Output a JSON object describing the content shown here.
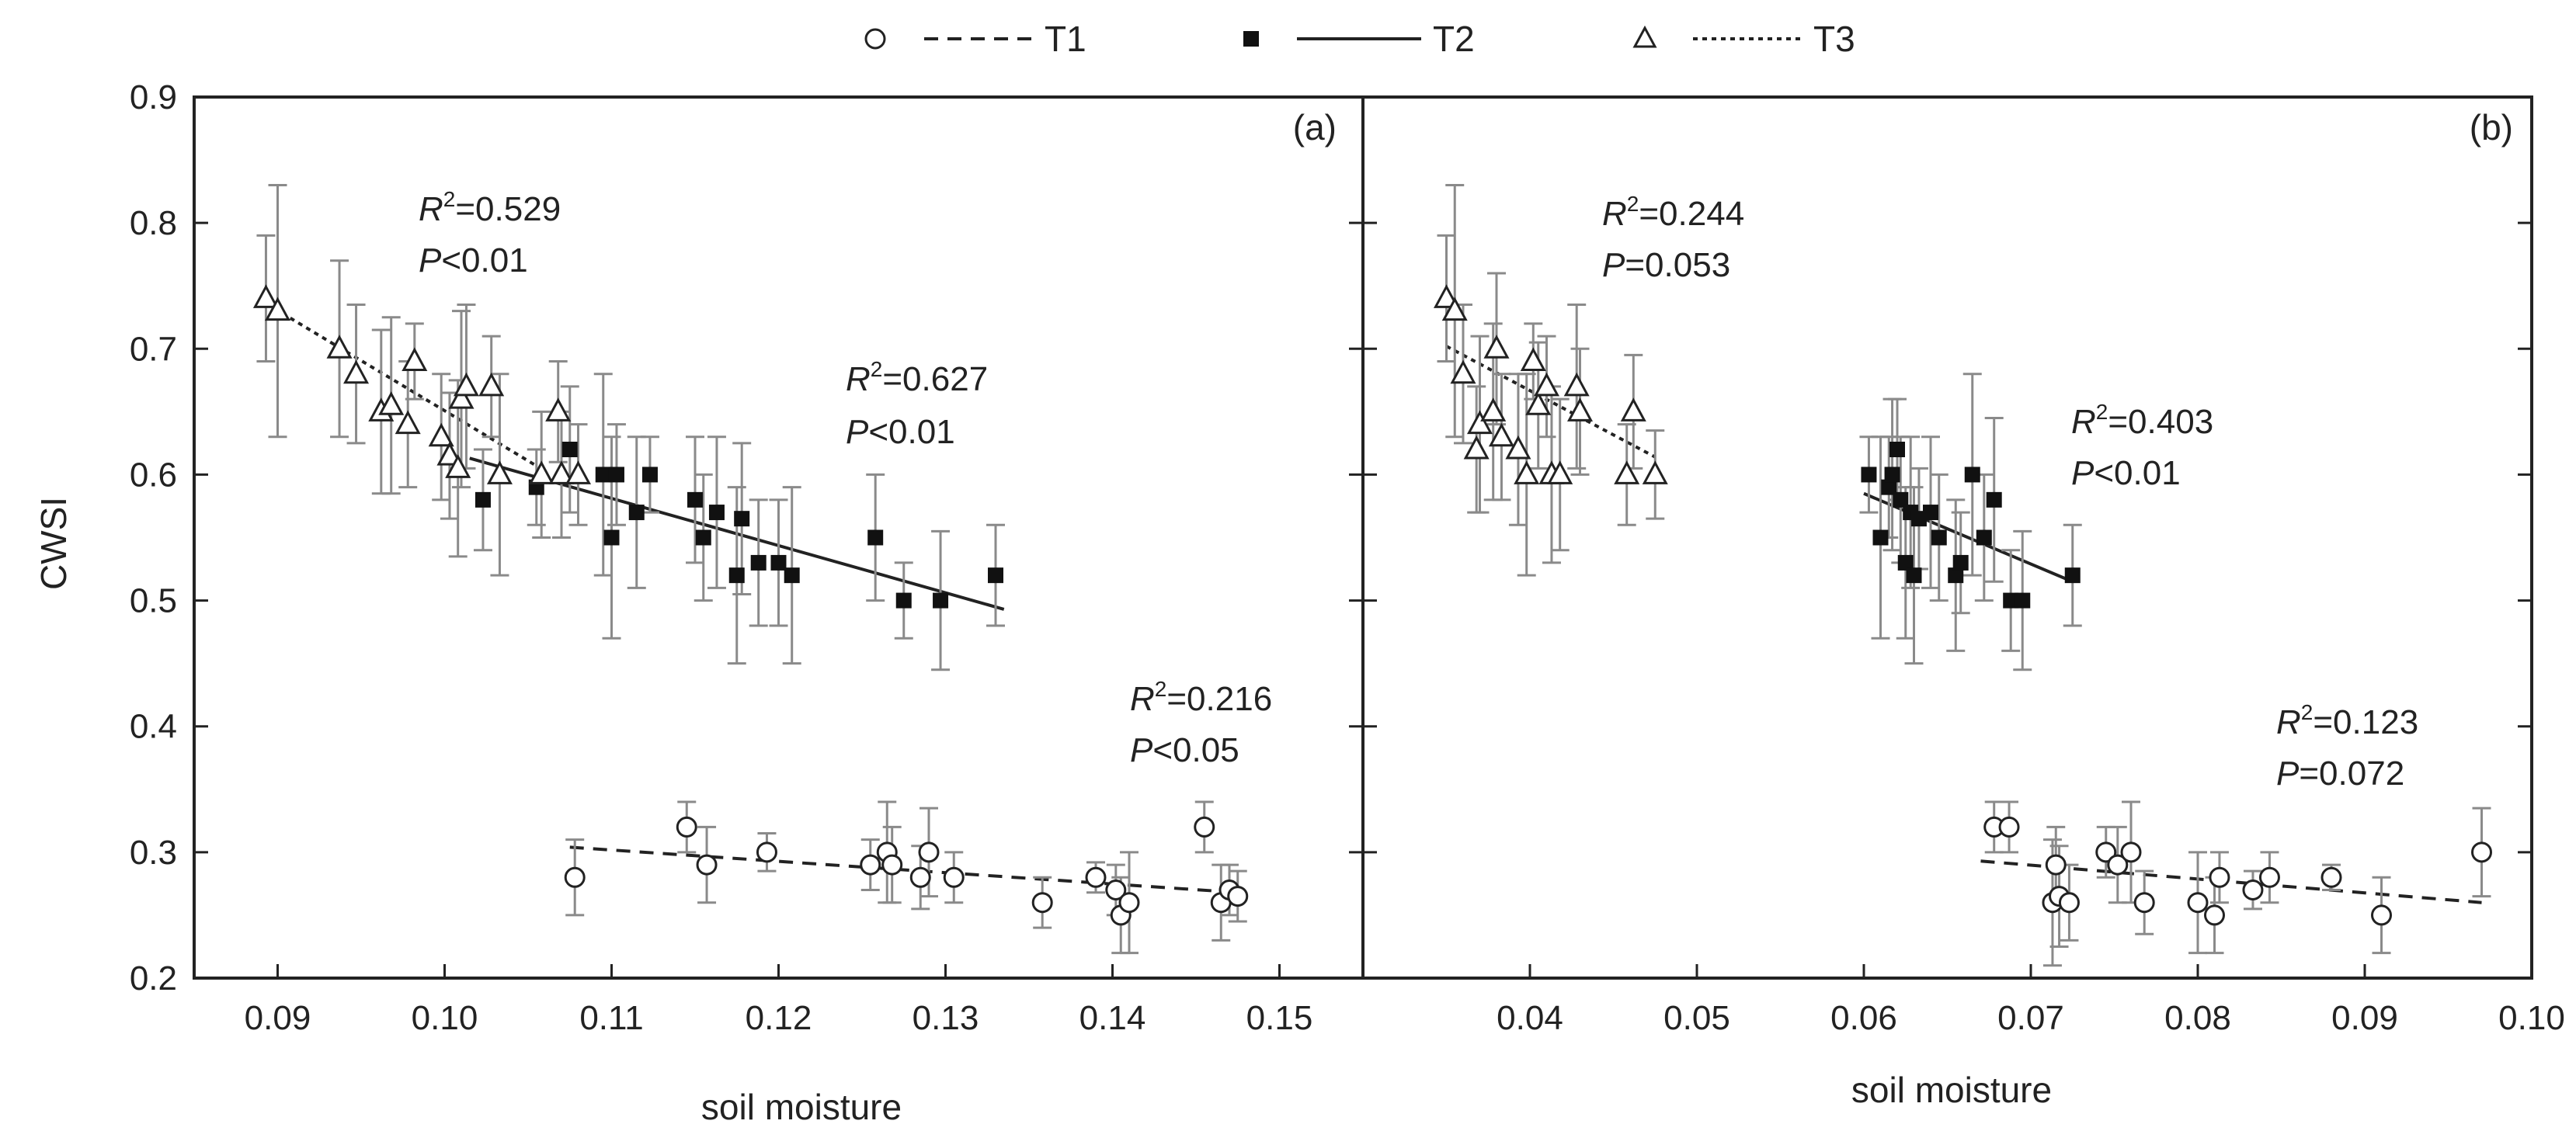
{
  "legend": [
    {
      "name": "T1",
      "marker": "open-circle",
      "line": "dashed"
    },
    {
      "name": "T2",
      "marker": "filled-square",
      "line": "solid"
    },
    {
      "name": "T3",
      "marker": "open-triangle",
      "line": "dotted"
    }
  ],
  "colors": {
    "axis": "#222222",
    "errorbar": "#8a8a8a",
    "marker": "#222222",
    "background": "#ffffff"
  },
  "chart_data": [
    {
      "type": "scatter",
      "panel": "(a)",
      "xlabel": "soil moisture",
      "ylabel": "CWSI",
      "xlim": [
        0.085,
        0.155
      ],
      "ylim": [
        0.2,
        0.9
      ],
      "xticks": [
        "0.09",
        "0.10",
        "0.11",
        "0.12",
        "0.13",
        "0.14",
        "0.15"
      ],
      "yticks": [
        "0.2",
        "0.3",
        "0.4",
        "0.5",
        "0.6",
        "0.7",
        "0.8",
        "0.9"
      ],
      "series": [
        {
          "name": "T1",
          "points": [
            [
              0.1078,
              0.28,
              0.03
            ],
            [
              0.1145,
              0.32,
              0.02
            ],
            [
              0.1157,
              0.29,
              0.03
            ],
            [
              0.1193,
              0.3,
              0.015
            ],
            [
              0.1255,
              0.29,
              0.02
            ],
            [
              0.1265,
              0.3,
              0.04
            ],
            [
              0.1268,
              0.29,
              0.03
            ],
            [
              0.1285,
              0.28,
              0.025
            ],
            [
              0.129,
              0.3,
              0.035
            ],
            [
              0.1305,
              0.28,
              0.02
            ],
            [
              0.1358,
              0.26,
              0.02
            ],
            [
              0.139,
              0.28,
              0.012
            ],
            [
              0.1402,
              0.27,
              0.02
            ],
            [
              0.1405,
              0.25,
              0.03
            ],
            [
              0.141,
              0.26,
              0.04
            ],
            [
              0.1455,
              0.32,
              0.02
            ],
            [
              0.1465,
              0.26,
              0.03
            ],
            [
              0.147,
              0.27,
              0.02
            ],
            [
              0.1475,
              0.265,
              0.02
            ]
          ],
          "fit": {
            "x": [
              0.1075,
              0.1475
            ],
            "y": [
              0.304,
              0.268
            ]
          },
          "annotation": {
            "r2": "=0.216",
            "p": "<0.05"
          }
        },
        {
          "name": "T2",
          "points": [
            [
              0.1023,
              0.58,
              0.04
            ],
            [
              0.1055,
              0.59,
              0.03
            ],
            [
              0.1075,
              0.62,
              0.05
            ],
            [
              0.1095,
              0.6,
              0.08
            ],
            [
              0.11,
              0.55,
              0.08
            ],
            [
              0.1103,
              0.6,
              0.04
            ],
            [
              0.1115,
              0.57,
              0.06
            ],
            [
              0.1123,
              0.6,
              0.03
            ],
            [
              0.115,
              0.58,
              0.05
            ],
            [
              0.1155,
              0.55,
              0.05
            ],
            [
              0.1163,
              0.57,
              0.06
            ],
            [
              0.1175,
              0.52,
              0.07
            ],
            [
              0.1178,
              0.565,
              0.06
            ],
            [
              0.1188,
              0.53,
              0.05
            ],
            [
              0.12,
              0.53,
              0.05
            ],
            [
              0.1208,
              0.52,
              0.07
            ],
            [
              0.1258,
              0.55,
              0.05
            ],
            [
              0.1275,
              0.5,
              0.03
            ],
            [
              0.1297,
              0.5,
              0.055
            ],
            [
              0.133,
              0.52,
              0.04
            ]
          ],
          "fit": {
            "x": [
              0.1015,
              0.1335
            ],
            "y": [
              0.613,
              0.493
            ]
          },
          "annotation": {
            "r2": "=0.627",
            "p": "<0.01"
          }
        },
        {
          "name": "T3",
          "points": [
            [
              0.0893,
              0.74,
              0.05
            ],
            [
              0.09,
              0.73,
              0.1
            ],
            [
              0.0937,
              0.7,
              0.07
            ],
            [
              0.0947,
              0.68,
              0.055
            ],
            [
              0.0962,
              0.65,
              0.065
            ],
            [
              0.0968,
              0.655,
              0.07
            ],
            [
              0.0978,
              0.64,
              0.05
            ],
            [
              0.0982,
              0.69,
              0.03
            ],
            [
              0.0998,
              0.63,
              0.05
            ],
            [
              0.1003,
              0.615,
              0.05
            ],
            [
              0.1008,
              0.605,
              0.07
            ],
            [
              0.101,
              0.66,
              0.07
            ],
            [
              0.1013,
              0.67,
              0.065
            ],
            [
              0.1028,
              0.67,
              0.04
            ],
            [
              0.1033,
              0.6,
              0.08
            ],
            [
              0.1058,
              0.6,
              0.05
            ],
            [
              0.1068,
              0.65,
              0.04
            ],
            [
              0.107,
              0.6,
              0.05
            ],
            [
              0.108,
              0.6,
              0.04
            ]
          ],
          "fit": {
            "x": [
              0.0898,
              0.1055
            ],
            "y": [
              0.732,
              0.607
            ]
          },
          "annotation": {
            "r2": "=0.529",
            "p": "<0.01"
          }
        }
      ]
    },
    {
      "type": "scatter",
      "panel": "(b)",
      "xlabel": "soil moisture",
      "ylabel": "",
      "xlim": [
        0.03,
        0.1
      ],
      "ylim": [
        0.2,
        0.9
      ],
      "xticks": [
        "0.04",
        "0.05",
        "0.06",
        "0.07",
        "0.08",
        "0.09",
        "0.10"
      ],
      "yticks": [
        "0.2",
        "0.3",
        "0.4",
        "0.5",
        "0.6",
        "0.7",
        "0.8",
        "0.9"
      ],
      "series": [
        {
          "name": "T1",
          "points": [
            [
              0.0678,
              0.32,
              0.02
            ],
            [
              0.0687,
              0.32,
              0.02
            ],
            [
              0.0713,
              0.26,
              0.05
            ],
            [
              0.0715,
              0.29,
              0.03
            ],
            [
              0.0717,
              0.265,
              0.04
            ],
            [
              0.0723,
              0.26,
              0.03
            ],
            [
              0.0745,
              0.3,
              0.02
            ],
            [
              0.0752,
              0.29,
              0.03
            ],
            [
              0.076,
              0.3,
              0.04
            ],
            [
              0.0768,
              0.26,
              0.025
            ],
            [
              0.08,
              0.26,
              0.04
            ],
            [
              0.081,
              0.25,
              0.03
            ],
            [
              0.0813,
              0.28,
              0.02
            ],
            [
              0.0833,
              0.27,
              0.015
            ],
            [
              0.0843,
              0.28,
              0.02
            ],
            [
              0.088,
              0.28,
              0.01
            ],
            [
              0.091,
              0.25,
              0.03
            ],
            [
              0.097,
              0.3,
              0.035
            ]
          ],
          "fit": {
            "x": [
              0.067,
              0.097
            ],
            "y": [
              0.293,
              0.26
            ]
          },
          "annotation": {
            "r2": "=0.123",
            "p": "=0.072"
          }
        },
        {
          "name": "T2",
          "points": [
            [
              0.0603,
              0.6,
              0.03
            ],
            [
              0.061,
              0.55,
              0.08
            ],
            [
              0.0615,
              0.59,
              0.04
            ],
            [
              0.0617,
              0.6,
              0.06
            ],
            [
              0.062,
              0.62,
              0.04
            ],
            [
              0.0622,
              0.58,
              0.05
            ],
            [
              0.0625,
              0.53,
              0.06
            ],
            [
              0.0628,
              0.57,
              0.06
            ],
            [
              0.063,
              0.52,
              0.07
            ],
            [
              0.0633,
              0.565,
              0.04
            ],
            [
              0.064,
              0.57,
              0.06
            ],
            [
              0.0645,
              0.55,
              0.05
            ],
            [
              0.0655,
              0.52,
              0.06
            ],
            [
              0.0658,
              0.53,
              0.04
            ],
            [
              0.0665,
              0.6,
              0.08
            ],
            [
              0.0672,
              0.55,
              0.05
            ],
            [
              0.0678,
              0.58,
              0.065
            ],
            [
              0.0688,
              0.5,
              0.04
            ],
            [
              0.0695,
              0.5,
              0.055
            ],
            [
              0.0725,
              0.52,
              0.04
            ]
          ],
          "fit": {
            "x": [
              0.06,
              0.0725
            ],
            "y": [
              0.585,
              0.515
            ]
          },
          "annotation": {
            "r2": "=0.403",
            "p": "<0.01"
          }
        },
        {
          "name": "T3",
          "points": [
            [
              0.035,
              0.74,
              0.05
            ],
            [
              0.0355,
              0.73,
              0.1
            ],
            [
              0.036,
              0.68,
              0.055
            ],
            [
              0.0368,
              0.62,
              0.05
            ],
            [
              0.037,
              0.64,
              0.07
            ],
            [
              0.0378,
              0.65,
              0.07
            ],
            [
              0.038,
              0.7,
              0.06
            ],
            [
              0.0383,
              0.63,
              0.05
            ],
            [
              0.0393,
              0.62,
              0.06
            ],
            [
              0.0398,
              0.6,
              0.08
            ],
            [
              0.0402,
              0.69,
              0.03
            ],
            [
              0.0405,
              0.655,
              0.05
            ],
            [
              0.041,
              0.67,
              0.04
            ],
            [
              0.0413,
              0.6,
              0.07
            ],
            [
              0.0418,
              0.6,
              0.06
            ],
            [
              0.0428,
              0.67,
              0.065
            ],
            [
              0.043,
              0.65,
              0.05
            ],
            [
              0.0458,
              0.6,
              0.04
            ],
            [
              0.0462,
              0.65,
              0.045
            ],
            [
              0.0475,
              0.6,
              0.035
            ]
          ],
          "fit": {
            "x": [
              0.035,
              0.0475
            ],
            "y": [
              0.702,
              0.614
            ]
          },
          "annotation": {
            "r2": "=0.244",
            "p": "=0.053"
          }
        }
      ]
    }
  ]
}
